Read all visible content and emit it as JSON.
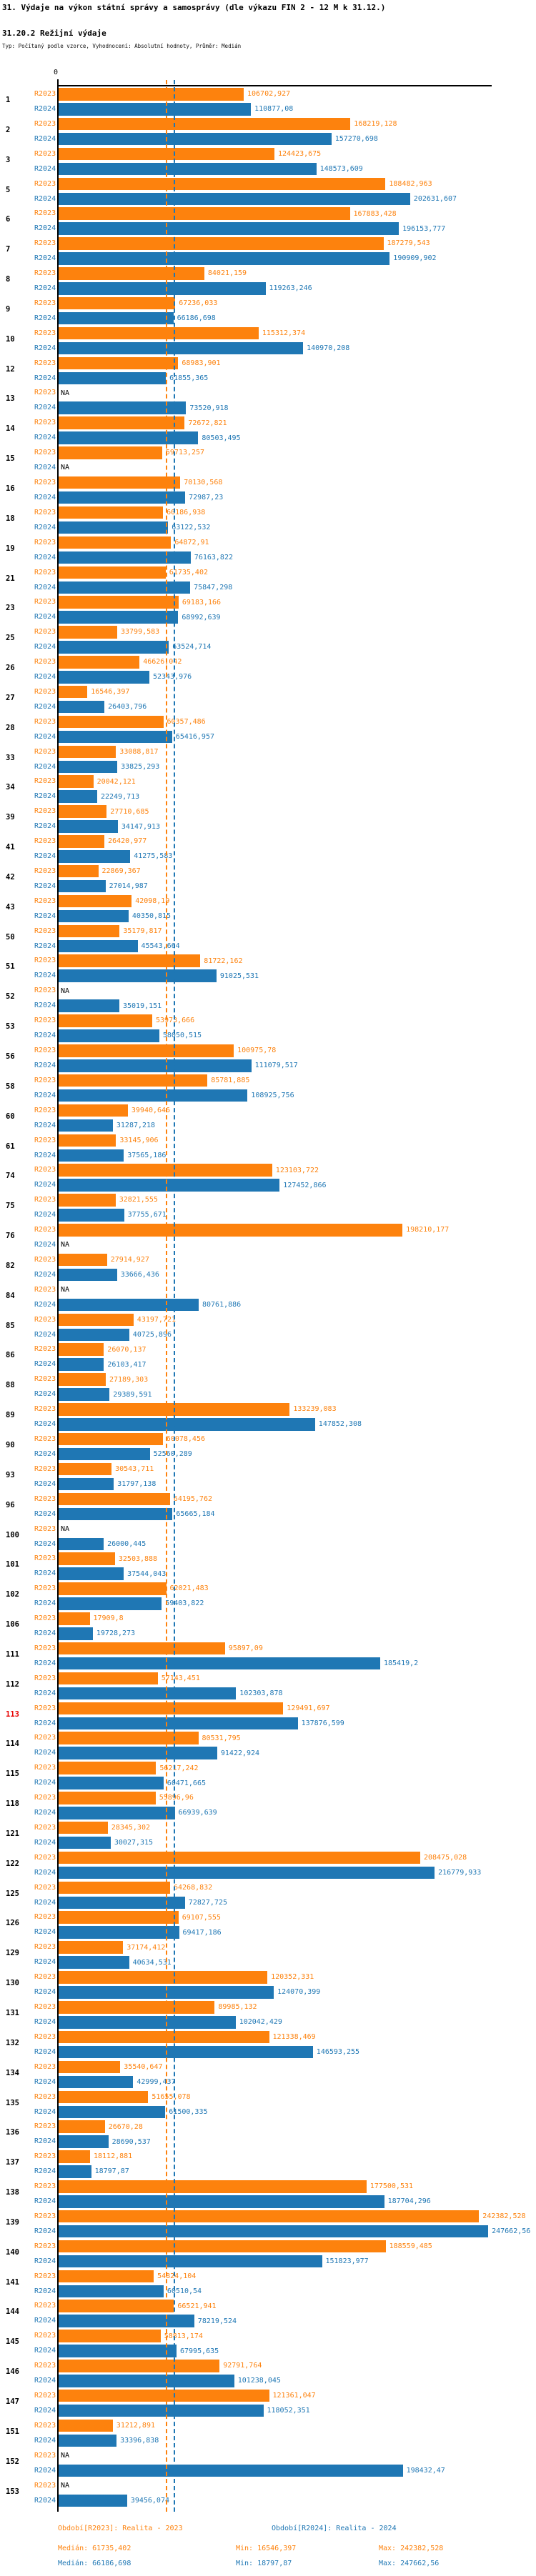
{
  "title": "31. Výdaje na výkon státní správy a samosprávy (dle výkazu FIN 2 - 12 M k 31.12.)",
  "subtitle": "31.20.2 Režijní výdaje",
  "type_line": "Typ: Počítaný podle vzorce, Vyhodnocení: Absolutní hodnoty, Průměr: Medián",
  "colors": {
    "r2023": "#fd820d",
    "r2024": "#1f77b4",
    "highlight": "#e80000",
    "axis": "#000000"
  },
  "chart_data": {
    "type": "bar",
    "orientation": "horizontal",
    "zero_label": "0",
    "xlim": [
      0,
      256000
    ],
    "grid": false,
    "highlighted_row_id": "113",
    "series": [
      {
        "key": "r2023",
        "label": "R2023",
        "color": "#fd820d",
        "median": 61735.402
      },
      {
        "key": "r2024",
        "label": "R2024",
        "color": "#1f77b4",
        "median": 66186.698
      }
    ],
    "rows": [
      {
        "id": "1",
        "r2023": "106702,927",
        "r2024": "110877,08"
      },
      {
        "id": "2",
        "r2023": "168219,128",
        "r2024": "157270,698"
      },
      {
        "id": "3",
        "r2023": "124423,675",
        "r2024": "148573,609"
      },
      {
        "id": "5",
        "r2023": "188482,963",
        "r2024": "202631,607"
      },
      {
        "id": "6",
        "r2023": "167883,428",
        "r2024": "196153,777"
      },
      {
        "id": "7",
        "r2023": "187279,543",
        "r2024": "190909,902"
      },
      {
        "id": "8",
        "r2023": "84021,159",
        "r2024": "119263,246"
      },
      {
        "id": "9",
        "r2023": "67236,033",
        "r2024": "66186,698"
      },
      {
        "id": "10",
        "r2023": "115312,374",
        "r2024": "140970,208"
      },
      {
        "id": "12",
        "r2023": "68983,901",
        "r2024": "61855,365"
      },
      {
        "id": "13",
        "r2023": "NA",
        "r2024": "73520,918"
      },
      {
        "id": "14",
        "r2023": "72672,821",
        "r2024": "80503,495"
      },
      {
        "id": "15",
        "r2023": "59713,257",
        "r2024": "NA"
      },
      {
        "id": "16",
        "r2023": "70130,568",
        "r2024": "72987,23"
      },
      {
        "id": "18",
        "r2023": "60186,938",
        "r2024": "63122,532"
      },
      {
        "id": "19",
        "r2023": "64872,91",
        "r2024": "76163,822"
      },
      {
        "id": "21",
        "r2023": "61735,402",
        "r2024": "75847,298"
      },
      {
        "id": "23",
        "r2023": "69183,166",
        "r2024": "68992,639"
      },
      {
        "id": "25",
        "r2023": "33799,583",
        "r2024": "63524,714"
      },
      {
        "id": "26",
        "r2023": "46626,042",
        "r2024": "52343,976"
      },
      {
        "id": "27",
        "r2023": "16546,397",
        "r2024": "26403,796"
      },
      {
        "id": "28",
        "r2023": "60357,486",
        "r2024": "65416,957"
      },
      {
        "id": "33",
        "r2023": "33088,817",
        "r2024": "33825,293"
      },
      {
        "id": "34",
        "r2023": "20042,121",
        "r2024": "22249,713"
      },
      {
        "id": "39",
        "r2023": "27710,685",
        "r2024": "34147,913"
      },
      {
        "id": "41",
        "r2023": "26420,977",
        "r2024": "41275,583"
      },
      {
        "id": "42",
        "r2023": "22869,367",
        "r2024": "27014,987"
      },
      {
        "id": "43",
        "r2023": "42098,19",
        "r2024": "40350,815"
      },
      {
        "id": "50",
        "r2023": "35179,817",
        "r2024": "45543,664"
      },
      {
        "id": "51",
        "r2023": "81722,162",
        "r2024": "91025,531"
      },
      {
        "id": "52",
        "r2023": "NA",
        "r2024": "35019,151"
      },
      {
        "id": "53",
        "r2023": "53973,666",
        "r2024": "58050,515"
      },
      {
        "id": "56",
        "r2023": "100975,78",
        "r2024": "111079,517"
      },
      {
        "id": "58",
        "r2023": "85781,885",
        "r2024": "108925,756"
      },
      {
        "id": "60",
        "r2023": "39940,646",
        "r2024": "31287,218"
      },
      {
        "id": "61",
        "r2023": "33145,906",
        "r2024": "37565,186"
      },
      {
        "id": "74",
        "r2023": "123103,722",
        "r2024": "127452,866"
      },
      {
        "id": "75",
        "r2023": "32821,555",
        "r2024": "37755,671"
      },
      {
        "id": "76",
        "r2023": "198210,177",
        "r2024": "NA"
      },
      {
        "id": "82",
        "r2023": "27914,927",
        "r2024": "33666,436"
      },
      {
        "id": "84",
        "r2023": "NA",
        "r2024": "80761,886"
      },
      {
        "id": "85",
        "r2023": "43197,721",
        "r2024": "40725,896"
      },
      {
        "id": "86",
        "r2023": "26070,137",
        "r2024": "26103,417"
      },
      {
        "id": "88",
        "r2023": "27189,303",
        "r2024": "29389,591"
      },
      {
        "id": "89",
        "r2023": "133239,083",
        "r2024": "147852,308"
      },
      {
        "id": "90",
        "r2023": "60078,456",
        "r2024": "52560,289"
      },
      {
        "id": "93",
        "r2023": "30543,711",
        "r2024": "31797,138"
      },
      {
        "id": "96",
        "r2023": "64195,762",
        "r2024": "65665,184"
      },
      {
        "id": "100",
        "r2023": "NA",
        "r2024": "26000,445"
      },
      {
        "id": "101",
        "r2023": "32503,888",
        "r2024": "37544,043"
      },
      {
        "id": "102",
        "r2023": "62021,483",
        "r2024": "59403,822"
      },
      {
        "id": "106",
        "r2023": "17909,8",
        "r2024": "19728,273"
      },
      {
        "id": "111",
        "r2023": "95897,09",
        "r2024": "185419,2"
      },
      {
        "id": "112",
        "r2023": "57143,451",
        "r2024": "102303,878"
      },
      {
        "id": "113",
        "r2023": "129491,697",
        "r2024": "137876,599"
      },
      {
        "id": "114",
        "r2023": "80531,795",
        "r2024": "91422,924"
      },
      {
        "id": "115",
        "r2023": "56217,242",
        "r2024": "60471,665"
      },
      {
        "id": "118",
        "r2023": "55896,96",
        "r2024": "66939,639"
      },
      {
        "id": "121",
        "r2023": "28345,302",
        "r2024": "30027,315"
      },
      {
        "id": "122",
        "r2023": "208475,028",
        "r2024": "216779,933"
      },
      {
        "id": "125",
        "r2023": "64268,832",
        "r2024": "72827,725"
      },
      {
        "id": "126",
        "r2023": "69107,555",
        "r2024": "69417,186"
      },
      {
        "id": "129",
        "r2023": "37174,412",
        "r2024": "40634,531"
      },
      {
        "id": "130",
        "r2023": "120352,331",
        "r2024": "124070,399"
      },
      {
        "id": "131",
        "r2023": "89985,132",
        "r2024": "102042,429"
      },
      {
        "id": "132",
        "r2023": "121338,469",
        "r2024": "146593,255"
      },
      {
        "id": "134",
        "r2023": "35540,647",
        "r2024": "42999,437"
      },
      {
        "id": "135",
        "r2023": "51655,078",
        "r2024": "61500,335"
      },
      {
        "id": "136",
        "r2023": "26670,28",
        "r2024": "28690,537"
      },
      {
        "id": "137",
        "r2023": "18112,881",
        "r2024": "18797,87"
      },
      {
        "id": "138",
        "r2023": "177500,531",
        "r2024": "187704,296"
      },
      {
        "id": "139",
        "r2023": "242382,528",
        "r2024": "247662,56"
      },
      {
        "id": "140",
        "r2023": "188559,485",
        "r2024": "151823,977"
      },
      {
        "id": "141",
        "r2023": "54824,104",
        "r2024": "60510,54"
      },
      {
        "id": "144",
        "r2023": "66521,941",
        "r2024": "78219,524"
      },
      {
        "id": "145",
        "r2023": "58813,174",
        "r2024": "67995,635"
      },
      {
        "id": "146",
        "r2023": "92791,764",
        "r2024": "101238,045"
      },
      {
        "id": "147",
        "r2023": "121361,047",
        "r2024": "118052,351"
      },
      {
        "id": "151",
        "r2023": "31212,891",
        "r2024": "33396,838"
      },
      {
        "id": "152",
        "r2023": "NA",
        "r2024": "198432,47"
      },
      {
        "id": "153",
        "r2023": "NA",
        "r2024": "39456,074"
      }
    ]
  },
  "footer": {
    "legend_r2023": "Období[R2023]: Realita - 2023",
    "legend_r2024": "Období[R2024]: Realita - 2024",
    "r2023": {
      "median": "Medián: 61735,402",
      "min": "Min: 16546,397",
      "max": "Max: 242382,528"
    },
    "r2024": {
      "median": "Medián: 66186,698",
      "min": "Min: 18797,87",
      "max": "Max: 247662,56"
    }
  }
}
